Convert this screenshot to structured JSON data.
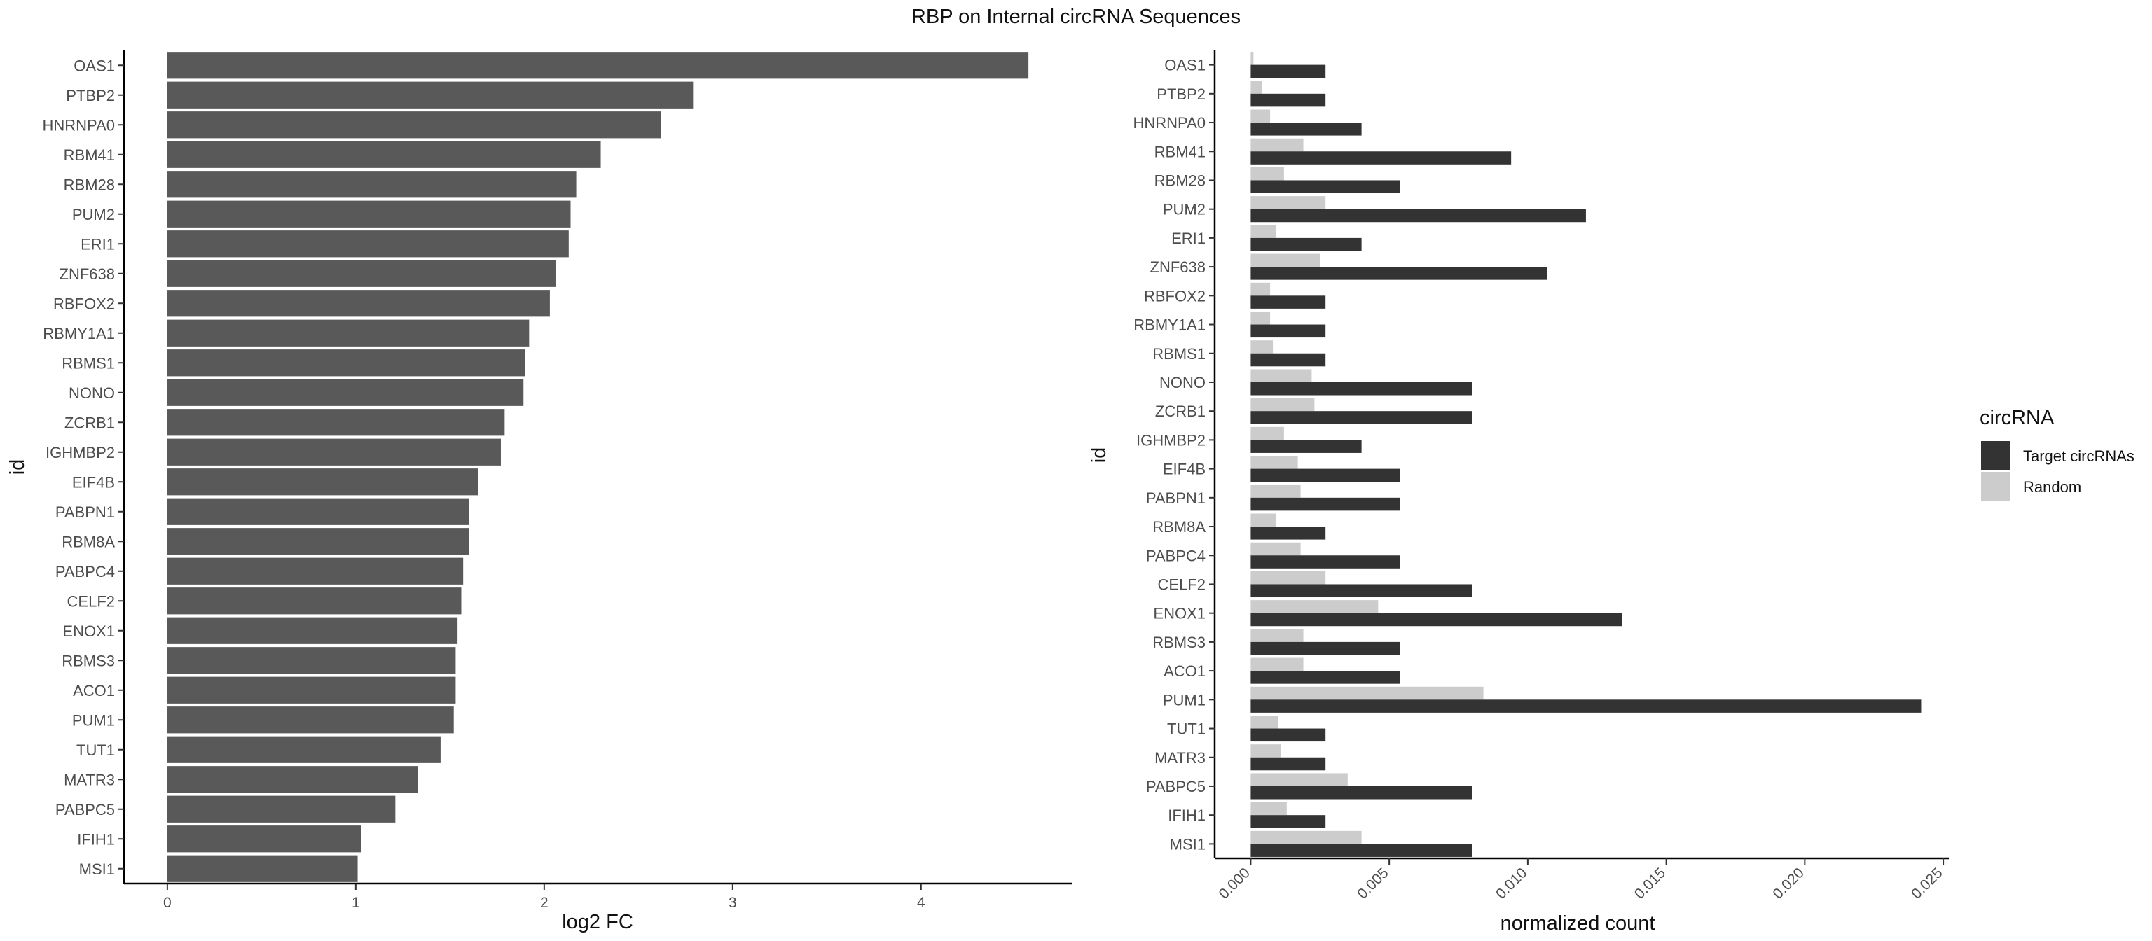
{
  "title": "RBP on Internal circRNA Sequences",
  "chart_data": [
    {
      "type": "bar",
      "orientation": "horizontal",
      "categories": [
        "OAS1",
        "PTBP2",
        "HNRNPA0",
        "RBM41",
        "RBM28",
        "PUM2",
        "ERI1",
        "ZNF638",
        "RBFOX2",
        "RBMY1A1",
        "RBMS1",
        "NONO",
        "ZCRB1",
        "IGHMBP2",
        "EIF4B",
        "PABPN1",
        "RBM8A",
        "PABPC4",
        "CELF2",
        "ENOX1",
        "RBMS3",
        "ACO1",
        "PUM1",
        "TUT1",
        "MATR3",
        "PABPC5",
        "IFIH1",
        "MSI1"
      ],
      "values": [
        4.57,
        2.79,
        2.62,
        2.3,
        2.17,
        2.14,
        2.13,
        2.06,
        2.03,
        1.92,
        1.9,
        1.89,
        1.79,
        1.77,
        1.65,
        1.6,
        1.6,
        1.57,
        1.56,
        1.54,
        1.53,
        1.53,
        1.52,
        1.45,
        1.33,
        1.21,
        1.03,
        1.01
      ],
      "xlabel": "log2 FC",
      "ylabel": "id",
      "xlim": [
        -0.23,
        4.8
      ],
      "xticks": [
        "0",
        "1",
        "2",
        "3",
        "4"
      ],
      "bar_color": "#595959"
    },
    {
      "type": "bar",
      "orientation": "horizontal",
      "categories": [
        "OAS1",
        "PTBP2",
        "HNRNPA0",
        "RBM41",
        "RBM28",
        "PUM2",
        "ERI1",
        "ZNF638",
        "RBFOX2",
        "RBMY1A1",
        "RBMS1",
        "NONO",
        "ZCRB1",
        "IGHMBP2",
        "EIF4B",
        "PABPN1",
        "RBM8A",
        "PABPC4",
        "CELF2",
        "ENOX1",
        "RBMS3",
        "ACO1",
        "PUM1",
        "TUT1",
        "MATR3",
        "PABPC5",
        "IFIH1",
        "MSI1"
      ],
      "series": [
        {
          "name": "Target circRNAs",
          "color": "#333333",
          "values": [
            0.0027,
            0.0027,
            0.004,
            0.0094,
            0.0054,
            0.0121,
            0.004,
            0.0107,
            0.0027,
            0.0027,
            0.0027,
            0.008,
            0.008,
            0.004,
            0.0054,
            0.0054,
            0.0027,
            0.0054,
            0.008,
            0.0134,
            0.0054,
            0.0054,
            0.0242,
            0.0027,
            0.0027,
            0.008,
            0.0027,
            0.008
          ]
        },
        {
          "name": "Random",
          "color": "#cccccc",
          "values": [
            0.0001,
            0.0004,
            0.0007,
            0.0019,
            0.0012,
            0.0027,
            0.0009,
            0.0025,
            0.0007,
            0.0007,
            0.0008,
            0.0022,
            0.0023,
            0.0012,
            0.0017,
            0.0018,
            0.0009,
            0.0018,
            0.0027,
            0.0046,
            0.0019,
            0.0019,
            0.0084,
            0.001,
            0.0011,
            0.0035,
            0.0013,
            0.004
          ]
        }
      ],
      "xlabel": "normalized count",
      "ylabel": "id",
      "xlim": [
        -0.0013,
        0.0252
      ],
      "xticks": [
        "0.000",
        "0.005",
        "0.010",
        "0.015",
        "0.020",
        "0.025"
      ],
      "legend": {
        "title": "circRNA",
        "position": "right"
      }
    }
  ]
}
